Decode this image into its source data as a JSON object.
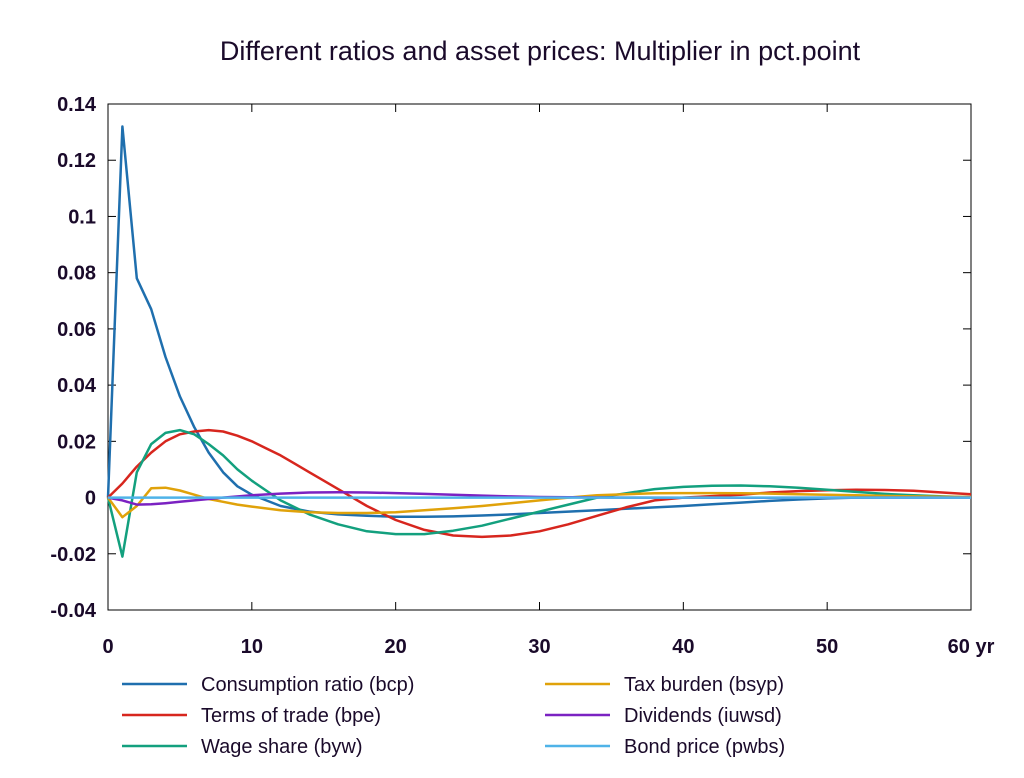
{
  "chart_data": {
    "type": "line",
    "title": "Different ratios and asset prices: Multiplier in pct.point",
    "x_unit_label": "yr",
    "xlim": [
      0,
      60
    ],
    "ylim": [
      -0.04,
      0.14
    ],
    "x_ticks": [
      0,
      10,
      20,
      30,
      40,
      50,
      60
    ],
    "y_ticks": [
      -0.04,
      -0.02,
      0,
      0.02,
      0.04,
      0.06,
      0.08,
      0.1,
      0.12,
      0.14
    ],
    "grid": false,
    "legend_position": "bottom",
    "series": [
      {
        "name": "Consumption ratio (bcp)",
        "color": "#1f6fae",
        "x": [
          0,
          1,
          2,
          3,
          4,
          5,
          6,
          7,
          8,
          9,
          10,
          12,
          14,
          16,
          18,
          20,
          22,
          24,
          26,
          28,
          30,
          32,
          34,
          36,
          38,
          40,
          42,
          44,
          46,
          48,
          50,
          52,
          55,
          58,
          60
        ],
        "y": [
          0,
          0.132,
          0.078,
          0.067,
          0.05,
          0.036,
          0.025,
          0.016,
          0.009,
          0.004,
          0.001,
          -0.003,
          -0.005,
          -0.006,
          -0.0065,
          -0.0068,
          -0.0068,
          -0.0067,
          -0.0064,
          -0.006,
          -0.0055,
          -0.005,
          -0.0045,
          -0.004,
          -0.0035,
          -0.003,
          -0.0024,
          -0.0018,
          -0.0012,
          -0.0007,
          -0.0003,
          0,
          0.0002,
          0.0002,
          0.0001
        ]
      },
      {
        "name": "Terms of trade (bpe)",
        "color": "#d7261e",
        "x": [
          0,
          1,
          2,
          3,
          4,
          5,
          6,
          7,
          8,
          9,
          10,
          11,
          12,
          13,
          14,
          15,
          16,
          18,
          20,
          22,
          24,
          26,
          28,
          30,
          32,
          34,
          36,
          38,
          40,
          42,
          44,
          46,
          48,
          50,
          52,
          54,
          56,
          58,
          60
        ],
        "y": [
          0,
          0.005,
          0.011,
          0.016,
          0.02,
          0.0225,
          0.0235,
          0.024,
          0.0235,
          0.022,
          0.02,
          0.0175,
          0.015,
          0.012,
          0.009,
          0.006,
          0.003,
          -0.003,
          -0.008,
          -0.0115,
          -0.0135,
          -0.014,
          -0.0135,
          -0.012,
          -0.0095,
          -0.0065,
          -0.0035,
          -0.001,
          0,
          0.0005,
          0.001,
          0.0018,
          0.0023,
          0.0026,
          0.0028,
          0.0027,
          0.0024,
          0.0018,
          0.0012
        ]
      },
      {
        "name": "Wage share (byw)",
        "color": "#13a07e",
        "x": [
          0,
          1,
          2,
          3,
          4,
          5,
          6,
          7,
          8,
          9,
          10,
          12,
          14,
          16,
          18,
          20,
          22,
          24,
          26,
          28,
          30,
          32,
          34,
          36,
          38,
          40,
          42,
          44,
          46,
          48,
          50,
          52,
          54,
          56,
          58,
          60
        ],
        "y": [
          0,
          -0.021,
          0.009,
          0.019,
          0.023,
          0.024,
          0.0225,
          0.019,
          0.015,
          0.01,
          0.006,
          -0.001,
          -0.006,
          -0.0095,
          -0.012,
          -0.013,
          -0.013,
          -0.0118,
          -0.01,
          -0.0075,
          -0.005,
          -0.0025,
          0,
          0.0015,
          0.003,
          0.0038,
          0.0042,
          0.0043,
          0.004,
          0.0035,
          0.0028,
          0.002,
          0.0013,
          0.0008,
          0.0004,
          0.0001
        ]
      },
      {
        "name": "Tax burden (bsyp)",
        "color": "#e0a20a",
        "x": [
          0,
          1,
          2,
          3,
          4,
          5,
          6,
          7,
          8,
          9,
          10,
          12,
          14,
          16,
          18,
          20,
          22,
          24,
          26,
          28,
          30,
          32,
          34,
          36,
          38,
          40,
          42,
          44,
          46,
          48,
          50,
          52,
          54,
          56,
          58,
          60
        ],
        "y": [
          0,
          -0.007,
          -0.003,
          0.0033,
          0.0035,
          0.0025,
          0.001,
          -0.0005,
          -0.0015,
          -0.0025,
          -0.0032,
          -0.0045,
          -0.0052,
          -0.0055,
          -0.0055,
          -0.0052,
          -0.0045,
          -0.0038,
          -0.003,
          -0.002,
          -0.001,
          0,
          0.0008,
          0.0012,
          0.0015,
          0.0016,
          0.0016,
          0.0015,
          0.0014,
          0.0012,
          0.001,
          0.0008,
          0.0006,
          0.0004,
          0.0003,
          0.0002
        ]
      },
      {
        "name": "Dividends (iuwsd)",
        "color": "#7b22c2",
        "x": [
          0,
          1,
          2,
          3,
          4,
          5,
          6,
          7,
          8,
          10,
          12,
          14,
          16,
          18,
          20,
          22,
          24,
          26,
          28,
          30,
          32,
          36,
          40,
          45,
          50,
          55,
          60
        ],
        "y": [
          0,
          -0.001,
          -0.0025,
          -0.0024,
          -0.002,
          -0.0015,
          -0.001,
          -0.0005,
          0,
          0.0008,
          0.0014,
          0.0018,
          0.0019,
          0.0018,
          0.0016,
          0.0013,
          0.001,
          0.0007,
          0.0004,
          0.0002,
          0.0001,
          0,
          -0.0001,
          -0.0001,
          0,
          0,
          0
        ]
      },
      {
        "name": "Bond price (pwbs)",
        "color": "#4fb3e8",
        "x": [
          0,
          10,
          20,
          30,
          40,
          50,
          60
        ],
        "y": [
          0,
          0,
          0,
          0,
          0,
          0,
          0
        ]
      }
    ]
  }
}
